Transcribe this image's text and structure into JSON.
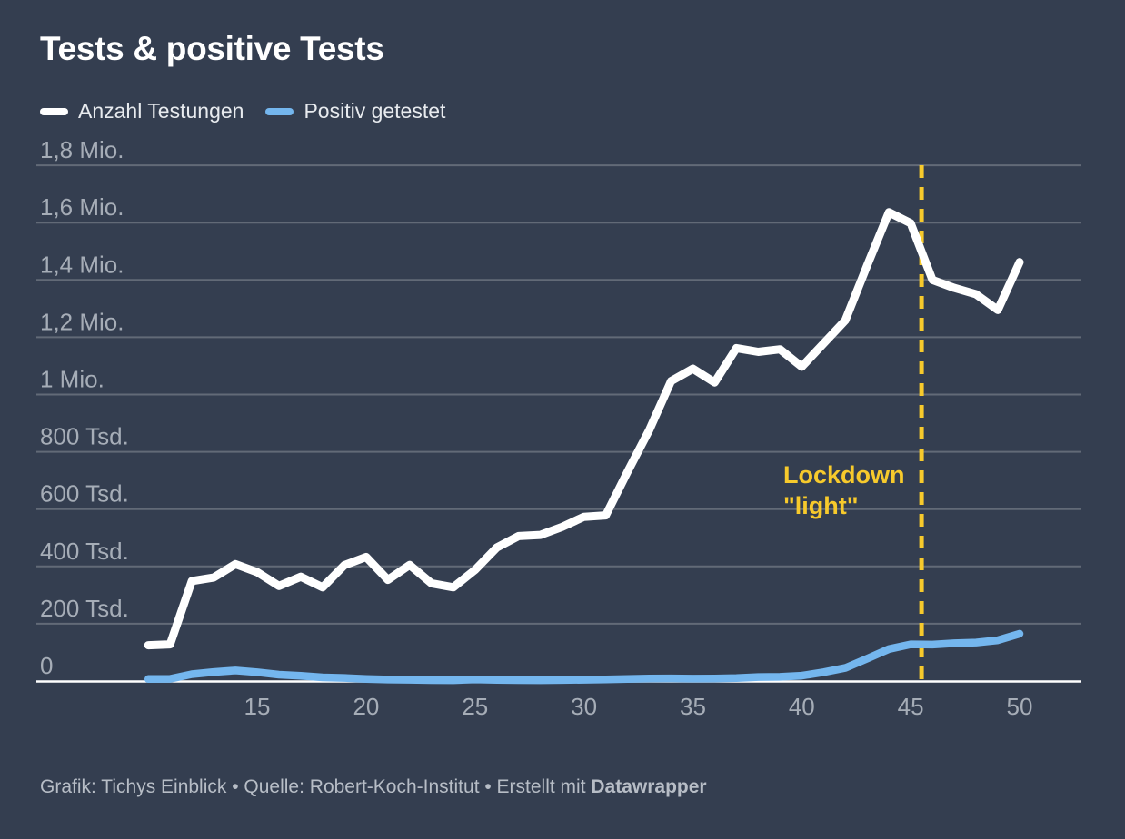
{
  "header": {
    "title": "Tests & positive Tests"
  },
  "legend": {
    "items": [
      {
        "label": "Anzahl Testungen",
        "color": "#ffffff"
      },
      {
        "label": "Positiv getestet",
        "color": "#74b6ee"
      }
    ]
  },
  "annotation": {
    "line1": "Lockdown",
    "line2": "\"light\"",
    "week": 45.5,
    "color": "#f7ca2c"
  },
  "footer": {
    "text": "Grafik: Tichys Einblick • Quelle: Robert-Koch-Institut • Erstellt mit ",
    "brand": "Datawrapper"
  },
  "colors": {
    "background": "#343e50",
    "grid": "#626a77",
    "axis_text": "#a6adb7",
    "baseline": "#ffffff",
    "accent_yellow": "#f7ca2c",
    "legend_text": "#e8ebef",
    "footer_text": "#b7bdc6"
  },
  "chart_data": {
    "type": "line",
    "title": "Tests & positive Tests",
    "xlabel": "",
    "ylabel": "",
    "xlim": [
      10,
      50
    ],
    "ylim": [
      0,
      1800000
    ],
    "grid": "horizontal",
    "legend_position": "top-left",
    "x_ticks": [
      15,
      20,
      25,
      30,
      35,
      40,
      45,
      50
    ],
    "y_ticks": [
      {
        "value": 0,
        "label": "0"
      },
      {
        "value": 200000,
        "label": "200 Tsd."
      },
      {
        "value": 400000,
        "label": "400 Tsd."
      },
      {
        "value": 600000,
        "label": "600 Tsd."
      },
      {
        "value": 800000,
        "label": "800 Tsd."
      },
      {
        "value": 1000000,
        "label": "1 Mio."
      },
      {
        "value": 1200000,
        "label": "1,2 Mio."
      },
      {
        "value": 1400000,
        "label": "1,4 Mio."
      },
      {
        "value": 1600000,
        "label": "1,6 Mio."
      },
      {
        "value": 1800000,
        "label": "1,8 Mio."
      }
    ],
    "x": [
      10,
      11,
      12,
      13,
      14,
      15,
      16,
      17,
      18,
      19,
      20,
      21,
      22,
      23,
      24,
      25,
      26,
      27,
      28,
      29,
      30,
      31,
      32,
      33,
      34,
      35,
      36,
      37,
      38,
      39,
      40,
      41,
      42,
      43,
      44,
      45,
      46,
      47,
      48,
      49,
      50
    ],
    "series": [
      {
        "name": "Anzahl Testungen",
        "color": "#ffffff",
        "values": [
          125000,
          128000,
          349000,
          361000,
          408000,
          380000,
          332000,
          364000,
          327000,
          404000,
          433000,
          353000,
          405000,
          341000,
          327000,
          388000,
          466000,
          506000,
          510000,
          538000,
          573000,
          578000,
          730000,
          876000,
          1047000,
          1090000,
          1042000,
          1162000,
          1149000,
          1158000,
          1097000,
          1178000,
          1259000,
          1450000,
          1636000,
          1598000,
          1400000,
          1372000,
          1350000,
          1295000,
          1462000
        ]
      },
      {
        "name": "Positiv getestet",
        "color": "#74b6ee",
        "values": [
          7000,
          7600,
          23800,
          31400,
          36900,
          30800,
          22100,
          18100,
          12600,
          10800,
          7200,
          5200,
          4300,
          3200,
          2800,
          5300,
          3700,
          3100,
          3000,
          3500,
          4500,
          5700,
          7300,
          8700,
          9200,
          8200,
          8800,
          10000,
          13900,
          14500,
          18700,
          30700,
          45800,
          77900,
          111700,
          128100,
          127000,
          131800,
          134300,
          142300,
          165000
        ]
      }
    ],
    "annotations": [
      {
        "type": "vertical-dashed-line",
        "x": 45.5,
        "label": "Lockdown \"light\""
      }
    ]
  }
}
